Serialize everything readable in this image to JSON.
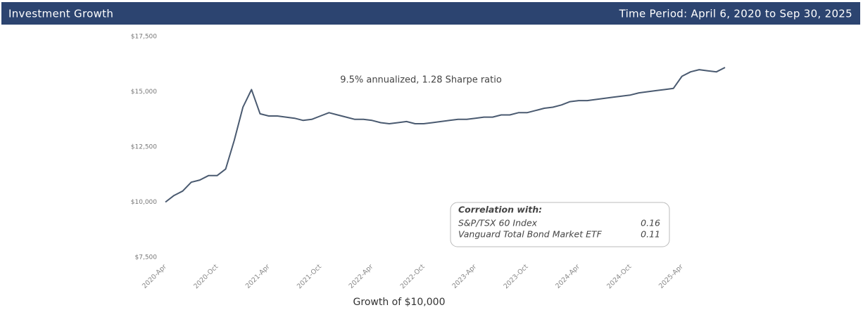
{
  "header": {
    "title": "Investment Growth",
    "period": "Time Period: April 6, 2020 to Sep 30, 2025"
  },
  "chart_data": {
    "type": "line",
    "annotation": "9.5% annualized, 1.28 Sharpe ratio",
    "x_label": "Growth of $10,000",
    "x": [
      "2020-Apr",
      "2020-May",
      "2020-Jun",
      "2020-Jul",
      "2020-Aug",
      "2020-Sep",
      "2020-Oct",
      "2020-Nov",
      "2020-Dec",
      "2021-Jan",
      "2021-Feb",
      "2021-Mar",
      "2021-Apr",
      "2021-May",
      "2021-Jun",
      "2021-Jul",
      "2021-Aug",
      "2021-Sep",
      "2021-Oct",
      "2021-Nov",
      "2021-Dec",
      "2022-Jan",
      "2022-Feb",
      "2022-Mar",
      "2022-Apr",
      "2022-May",
      "2022-Jun",
      "2022-Jul",
      "2022-Aug",
      "2022-Sep",
      "2022-Oct",
      "2022-Nov",
      "2022-Dec",
      "2023-Jan",
      "2023-Feb",
      "2023-Mar",
      "2023-Apr",
      "2023-May",
      "2023-Jun",
      "2023-Jul",
      "2023-Aug",
      "2023-Sep",
      "2023-Oct",
      "2023-Nov",
      "2023-Dec",
      "2024-Jan",
      "2024-Feb",
      "2024-Mar",
      "2024-Apr",
      "2024-May",
      "2024-Jun",
      "2024-Jul",
      "2024-Aug",
      "2024-Sep",
      "2024-Oct",
      "2024-Nov",
      "2024-Dec",
      "2025-Jan",
      "2025-Feb",
      "2025-Mar",
      "2025-Apr",
      "2025-May",
      "2025-Jun",
      "2025-Jul",
      "2025-Aug",
      "2025-Sep"
    ],
    "series": [
      {
        "name": "Growth of $10,000",
        "color": "#4a5a70",
        "values": [
          10000,
          10300,
          10500,
          10900,
          11000,
          11200,
          11200,
          11500,
          12800,
          14300,
          15100,
          14000,
          13900,
          13900,
          13850,
          13800,
          13700,
          13750,
          13900,
          14050,
          13950,
          13850,
          13750,
          13750,
          13700,
          13600,
          13550,
          13600,
          13650,
          13550,
          13550,
          13600,
          13650,
          13700,
          13750,
          13750,
          13800,
          13850,
          13850,
          13950,
          13950,
          14050,
          14050,
          14150,
          14250,
          14300,
          14400,
          14550,
          14600,
          14600,
          14650,
          14700,
          14750,
          14800,
          14850,
          14950,
          15000,
          15050,
          15100,
          15150,
          15700,
          15900,
          16000,
          15950,
          15900,
          16100
        ]
      }
    ],
    "xticks": [
      "2020-Apr",
      "2020-Oct",
      "2021-Apr",
      "2021-Oct",
      "2022-Apr",
      "2022-Oct",
      "2023-Apr",
      "2023-Oct",
      "2024-Apr",
      "2024-Oct",
      "2025-Apr"
    ],
    "ylim": [
      7500,
      17500
    ],
    "yticks": [
      {
        "value": 7500,
        "label": "$7,500"
      },
      {
        "value": 10000,
        "label": "$10,000"
      },
      {
        "value": 12500,
        "label": "$12,500"
      },
      {
        "value": 15000,
        "label": "$15,000"
      },
      {
        "value": 17500,
        "label": "$17,500"
      }
    ],
    "grid": false
  },
  "correlation": {
    "title": "Correlation with:",
    "rows": [
      {
        "name": "S&P/TSX 60 Index",
        "value": 0.16
      },
      {
        "name": "Vanguard Total Bond Market ETF",
        "value": 0.11
      }
    ]
  }
}
